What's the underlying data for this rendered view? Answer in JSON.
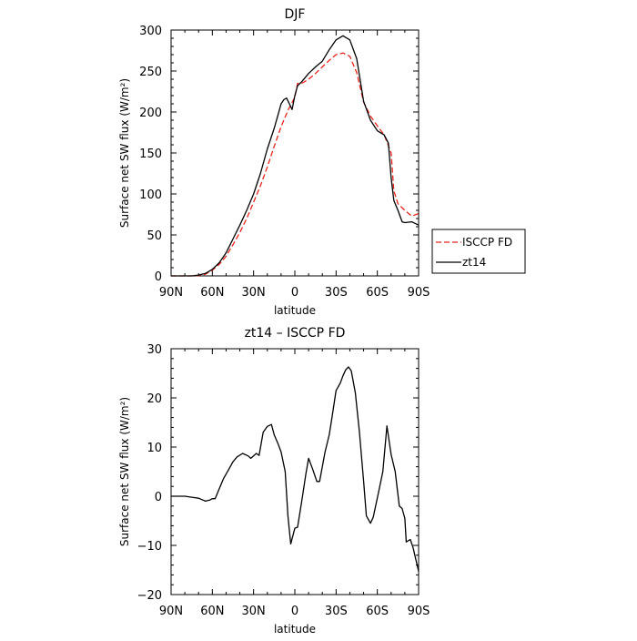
{
  "chart_data": [
    {
      "type": "line",
      "title": "DJF",
      "xlabel": "latitude",
      "ylabel": "Surface net SW flux (W/m²)",
      "xlim": [
        -90,
        90
      ],
      "ylim": [
        0,
        300
      ],
      "x_ticks": [
        -90,
        -60,
        -30,
        0,
        30,
        60,
        90
      ],
      "x_tick_labels": [
        "90N",
        "60N",
        "30N",
        "0",
        "30S",
        "60S",
        "90S"
      ],
      "y_ticks": [
        0,
        50,
        100,
        150,
        200,
        250,
        300
      ],
      "y_tick_labels": [
        "0",
        "50",
        "100",
        "150",
        "200",
        "250",
        "300"
      ],
      "legend": "outside-right",
      "series": [
        {
          "name": "ISCCP FD",
          "color": "#e8241c",
          "dash": true,
          "points": [
            [
              -90,
              0
            ],
            [
              -80,
              0
            ],
            [
              -75,
              0
            ],
            [
              -70,
              0.5
            ],
            [
              -65,
              2
            ],
            [
              -60,
              7
            ],
            [
              -55,
              14
            ],
            [
              -50,
              24
            ],
            [
              -45,
              38
            ],
            [
              -40,
              53
            ],
            [
              -35,
              70
            ],
            [
              -30,
              90
            ],
            [
              -25,
              110
            ],
            [
              -20,
              133
            ],
            [
              -15,
              158
            ],
            [
              -10,
              182
            ],
            [
              -5,
              202
            ],
            [
              0,
              218
            ],
            [
              2,
              235
            ],
            [
              5,
              235
            ],
            [
              10,
              240
            ],
            [
              15,
              247
            ],
            [
              20,
              255
            ],
            [
              25,
              263
            ],
            [
              30,
              270
            ],
            [
              35,
              272
            ],
            [
              40,
              268
            ],
            [
              45,
              248
            ],
            [
              50,
              212
            ],
            [
              55,
              195
            ],
            [
              60,
              183
            ],
            [
              65,
              172
            ],
            [
              70,
              150
            ],
            [
              72,
              104
            ],
            [
              75,
              88
            ],
            [
              80,
              80
            ],
            [
              85,
              73
            ],
            [
              90,
              76
            ]
          ]
        },
        {
          "name": "zt14",
          "color": "#000000",
          "dash": false,
          "points": [
            [
              -90,
              0
            ],
            [
              -80,
              0
            ],
            [
              -75,
              0
            ],
            [
              -70,
              1
            ],
            [
              -65,
              3
            ],
            [
              -60,
              8
            ],
            [
              -55,
              16
            ],
            [
              -50,
              28
            ],
            [
              -45,
              45
            ],
            [
              -40,
              62
            ],
            [
              -35,
              80
            ],
            [
              -30,
              100
            ],
            [
              -25,
              125
            ],
            [
              -20,
              155
            ],
            [
              -15,
              180
            ],
            [
              -12,
              198
            ],
            [
              -10,
              210
            ],
            [
              -8,
              215
            ],
            [
              -6,
              217
            ],
            [
              -4,
              210
            ],
            [
              -2,
              203
            ],
            [
              0,
              220
            ],
            [
              2,
              232
            ],
            [
              5,
              237
            ],
            [
              10,
              247
            ],
            [
              15,
              255
            ],
            [
              20,
              262
            ],
            [
              25,
              276
            ],
            [
              30,
              288
            ],
            [
              35,
              293
            ],
            [
              40,
              288
            ],
            [
              45,
              265
            ],
            [
              50,
              213
            ],
            [
              55,
              190
            ],
            [
              60,
              177
            ],
            [
              65,
              172
            ],
            [
              68,
              162
            ],
            [
              70,
              120
            ],
            [
              72,
              92
            ],
            [
              75,
              80
            ],
            [
              78,
              66
            ],
            [
              80,
              65
            ],
            [
              85,
              66
            ],
            [
              90,
              62
            ]
          ]
        }
      ]
    },
    {
      "type": "line",
      "title": "zt14 – ISCCP FD",
      "xlabel": "latitude",
      "ylabel": "Surface net SW flux (W/m²)",
      "xlim": [
        -90,
        90
      ],
      "ylim": [
        -20,
        30
      ],
      "x_ticks": [
        -90,
        -60,
        -30,
        0,
        30,
        60,
        90
      ],
      "x_tick_labels": [
        "90N",
        "60N",
        "30N",
        "0",
        "30S",
        "60S",
        "90S"
      ],
      "y_ticks": [
        -20,
        -10,
        0,
        10,
        20,
        30
      ],
      "y_tick_labels": [
        "−20",
        "−10",
        "0",
        "10",
        "20",
        "30"
      ],
      "series": [
        {
          "color": "#000000",
          "dash": false,
          "points": [
            [
              -90,
              0
            ],
            [
              -85,
              0
            ],
            [
              -80,
              0
            ],
            [
              -75,
              -0.2
            ],
            [
              -70,
              -0.4
            ],
            [
              -65,
              -1
            ],
            [
              -62,
              -0.8
            ],
            [
              -60,
              -0.5
            ],
            [
              -58,
              -0.5
            ],
            [
              -55,
              1.5
            ],
            [
              -52,
              3.5
            ],
            [
              -48,
              5.5
            ],
            [
              -45,
              7
            ],
            [
              -42,
              8
            ],
            [
              -38,
              8.7
            ],
            [
              -34,
              8.2
            ],
            [
              -32,
              7.7
            ],
            [
              -28,
              8.7
            ],
            [
              -26,
              8.3
            ],
            [
              -23,
              13
            ],
            [
              -20,
              14.2
            ],
            [
              -17,
              14.6
            ],
            [
              -15,
              12.5
            ],
            [
              -12,
              10.5
            ],
            [
              -10,
              9
            ],
            [
              -7,
              5
            ],
            [
              -5,
              -4
            ],
            [
              -3,
              -9.7
            ],
            [
              0,
              -6.5
            ],
            [
              2,
              -6.3
            ],
            [
              5,
              -1
            ],
            [
              8,
              4.5
            ],
            [
              10,
              7.7
            ],
            [
              13,
              5.5
            ],
            [
              16,
              3
            ],
            [
              18,
              3
            ],
            [
              22,
              9
            ],
            [
              25,
              12.5
            ],
            [
              27,
              16
            ],
            [
              30,
              21.5
            ],
            [
              33,
              23
            ],
            [
              35,
              24.5
            ],
            [
              37,
              25.7
            ],
            [
              39,
              26.3
            ],
            [
              41,
              25.5
            ],
            [
              44,
              21
            ],
            [
              47,
              13
            ],
            [
              50,
              3
            ],
            [
              52,
              -4
            ],
            [
              55,
              -5.5
            ],
            [
              57,
              -4.3
            ],
            [
              61,
              1
            ],
            [
              64,
              5
            ],
            [
              67,
              14.3
            ],
            [
              70,
              8.5
            ],
            [
              73,
              5
            ],
            [
              76,
              -2
            ],
            [
              78,
              -2.5
            ],
            [
              80,
              -4.5
            ],
            [
              81,
              -9.3
            ],
            [
              84,
              -8.8
            ],
            [
              86,
              -10.5
            ],
            [
              90,
              -15.3
            ]
          ]
        }
      ]
    }
  ]
}
